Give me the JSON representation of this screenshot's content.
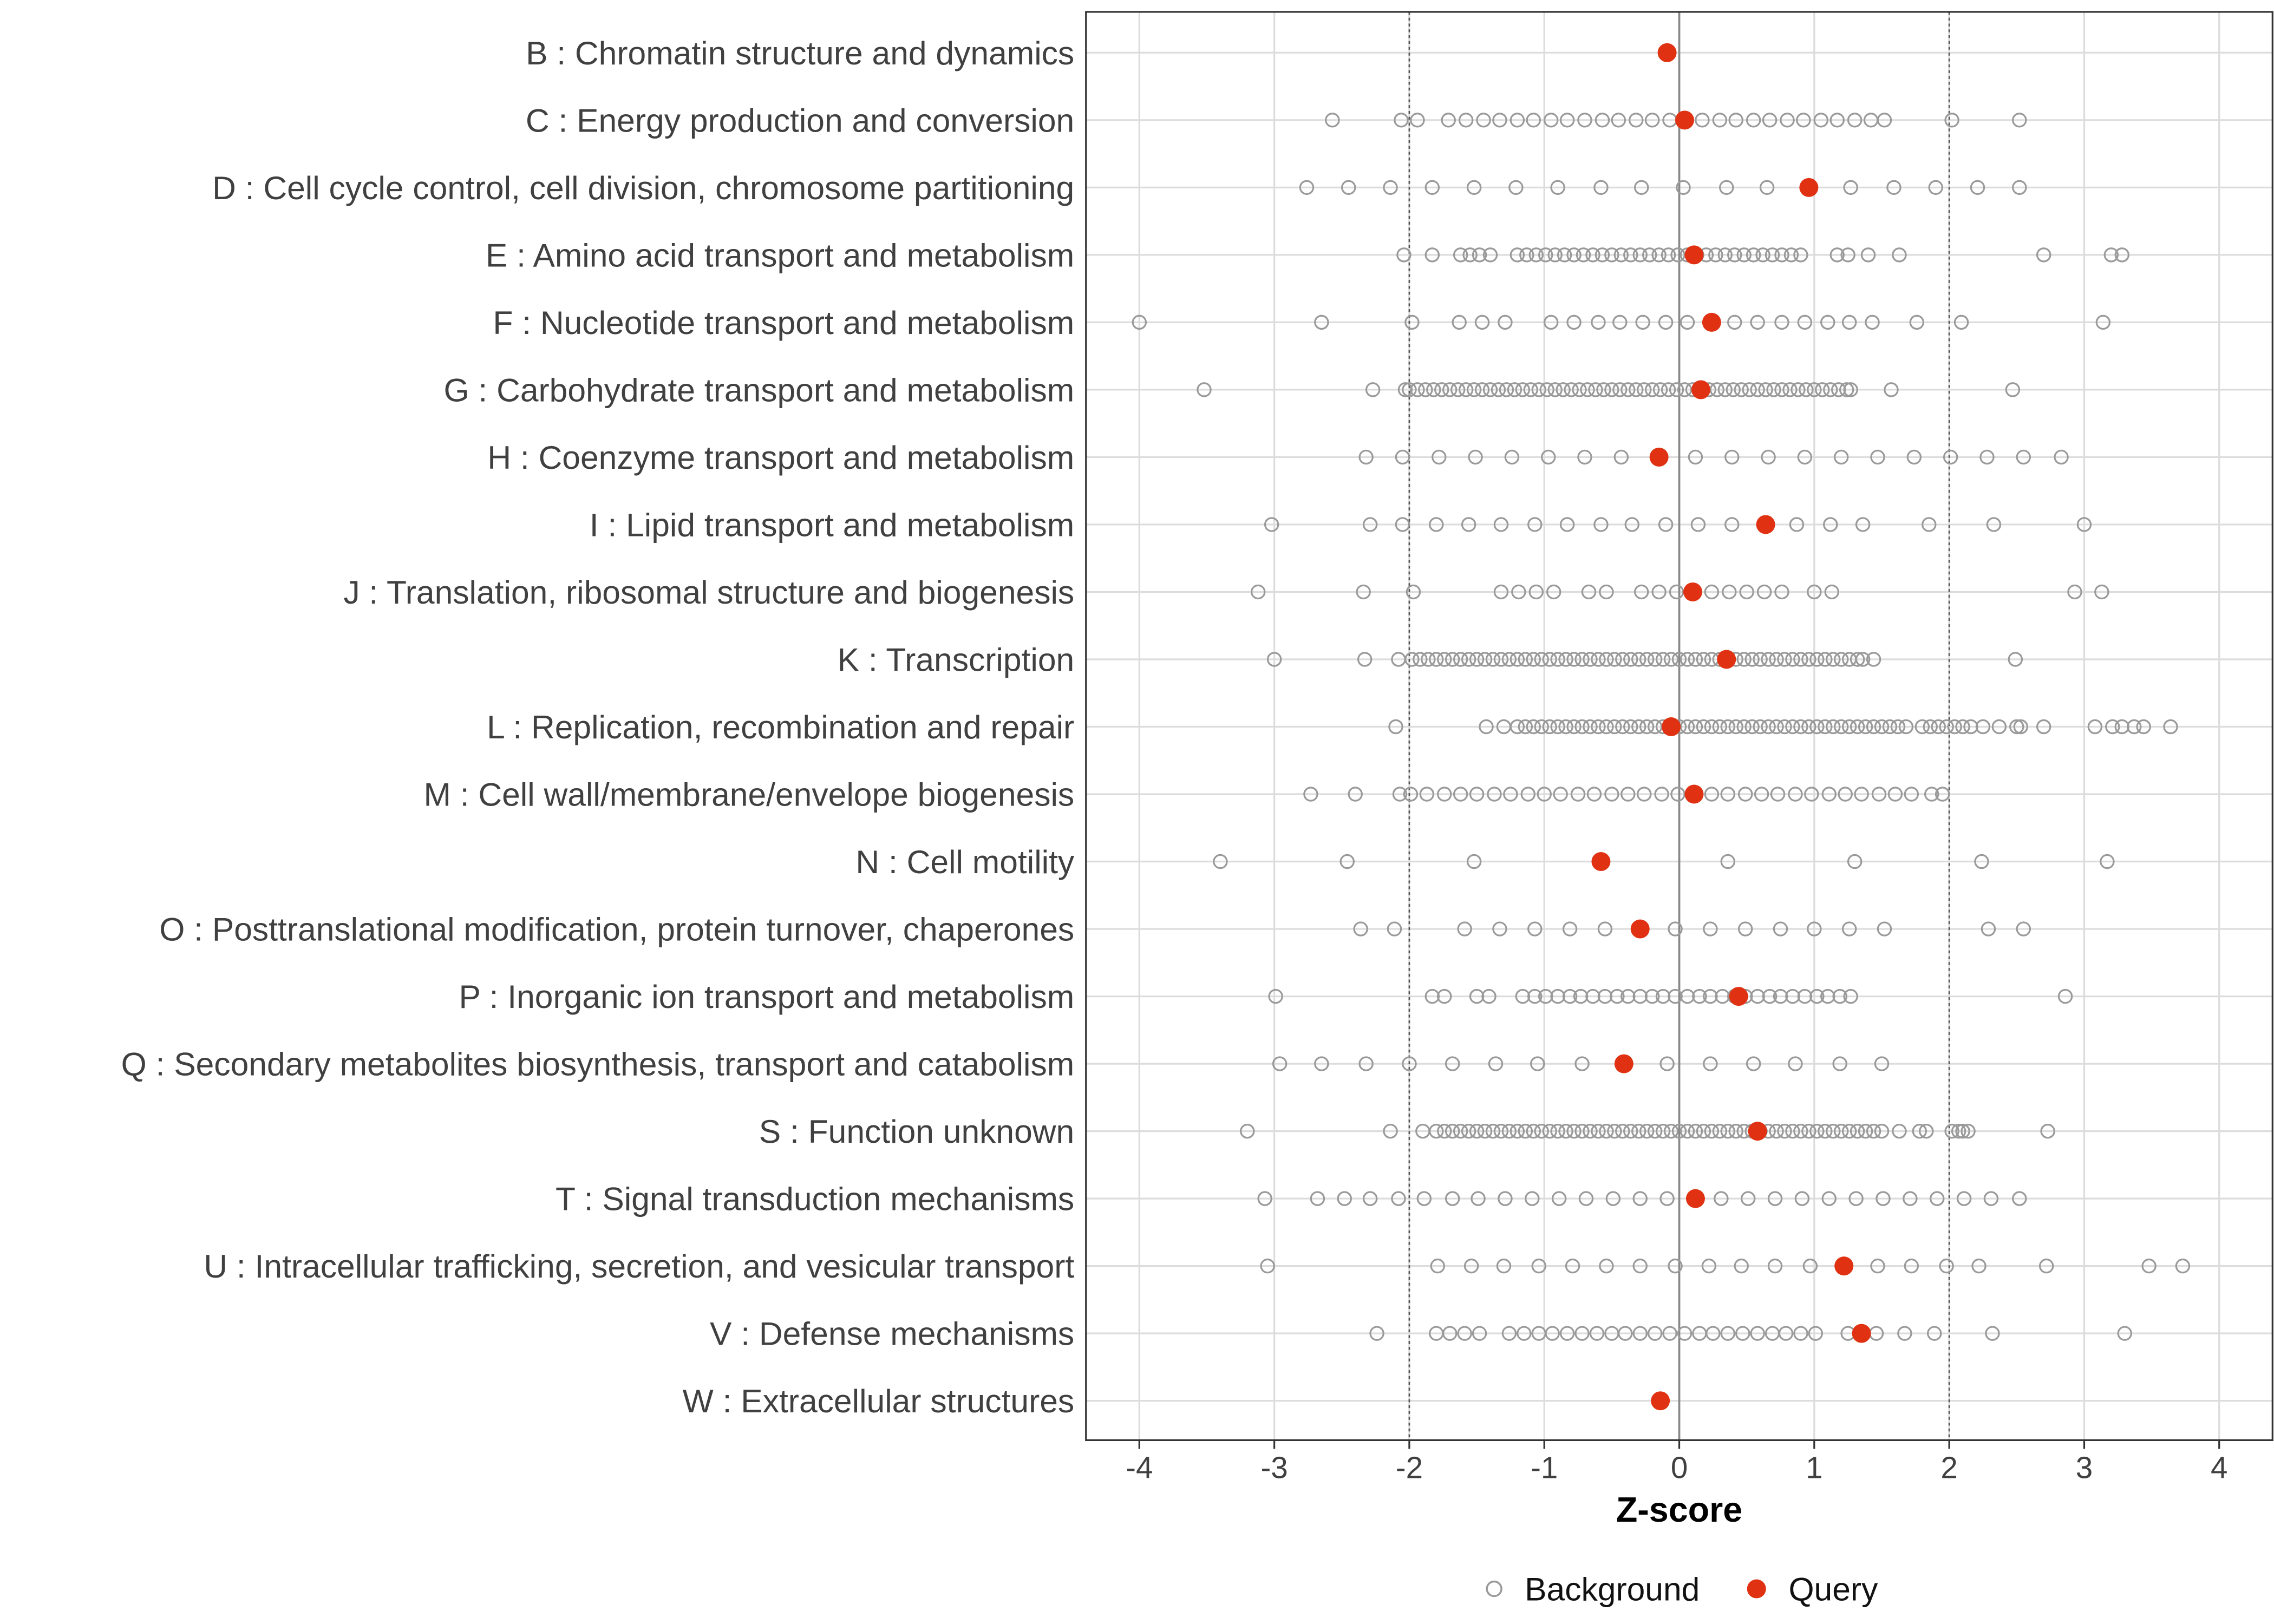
{
  "chart_data": {
    "type": "scatter",
    "title": "",
    "xlabel": "Z-score",
    "ylabel": "",
    "xlim": [
      -4.4,
      4.4
    ],
    "xticks": [
      -4,
      -3,
      -2,
      -1,
      0,
      1,
      2,
      3,
      4
    ],
    "xtick_labels": [
      "-4",
      "-3",
      "-2",
      "-1",
      "0",
      "1",
      "2",
      "3",
      "4"
    ],
    "reference_lines": {
      "dashed": [
        -2,
        2
      ],
      "solid": [
        0
      ]
    },
    "grid": true,
    "legend": {
      "placement": "bottom",
      "entries": [
        "Background",
        "Query"
      ]
    },
    "colors": {
      "background": "#9a9a9a",
      "query": "#e03212"
    },
    "categories": [
      "B : Chromatin structure and dynamics",
      "C : Energy production and conversion",
      "D : Cell cycle control, cell division, chromosome partitioning",
      "E : Amino acid transport and metabolism",
      "F : Nucleotide transport and metabolism",
      "G : Carbohydrate transport and metabolism",
      "H : Coenzyme transport and metabolism",
      "I : Lipid transport and metabolism",
      "J : Translation, ribosomal structure and biogenesis",
      "K : Transcription",
      "L : Replication, recombination and repair",
      "M : Cell wall/membrane/envelope biogenesis",
      "N : Cell motility",
      "O : Posttranslational modification, protein turnover, chaperones",
      "P : Inorganic ion transport and metabolism",
      "Q : Secondary metabolites biosynthesis, transport and catabolism",
      "S : Function unknown",
      "T : Signal transduction mechanisms",
      "U : Intracellular trafficking, secretion, and vesicular transport",
      "V : Defense mechanisms",
      "W : Extracellular structures"
    ],
    "series": [
      {
        "name": "Query",
        "values": [
          -0.09,
          0.04,
          0.96,
          0.11,
          0.24,
          0.16,
          -0.15,
          0.64,
          0.1,
          0.35,
          -0.06,
          0.11,
          -0.58,
          -0.29,
          0.44,
          -0.41,
          0.58,
          0.12,
          1.22,
          1.35,
          -0.14
        ]
      },
      {
        "name": "Background",
        "values": [
          [],
          [
            -2.57,
            -2.06,
            -1.94,
            -1.71,
            -1.58,
            -1.45,
            -1.33,
            -1.2,
            -1.08,
            -0.95,
            -0.83,
            -0.7,
            -0.57,
            -0.45,
            -0.32,
            -0.2,
            -0.07,
            0.05,
            0.17,
            0.3,
            0.42,
            0.55,
            0.67,
            0.8,
            0.92,
            1.05,
            1.17,
            1.3,
            1.42,
            1.52,
            2.02,
            2.52
          ],
          [
            -2.76,
            -2.45,
            -2.14,
            -1.83,
            -1.52,
            -1.21,
            -0.9,
            -0.58,
            -0.28,
            0.03,
            0.35,
            0.65,
            1.27,
            1.59,
            1.9,
            2.21,
            2.52
          ],
          [
            -2.04,
            -1.83,
            -1.62,
            -1.55,
            -1.48,
            -1.4,
            -1.2,
            -1.13,
            -1.06,
            -0.99,
            -0.92,
            -0.85,
            -0.78,
            -0.71,
            -0.64,
            -0.57,
            -0.5,
            -0.43,
            -0.36,
            -0.29,
            -0.22,
            -0.15,
            -0.08,
            -0.01,
            0.06,
            0.13,
            0.2,
            0.27,
            0.34,
            0.41,
            0.48,
            0.55,
            0.62,
            0.69,
            0.76,
            0.83,
            0.9,
            1.17,
            1.25,
            1.4,
            1.63,
            2.7,
            3.2,
            3.28
          ],
          [
            -4.0,
            -2.65,
            -1.98,
            -1.63,
            -1.46,
            -1.29,
            -0.95,
            -0.78,
            -0.6,
            -0.44,
            -0.27,
            -0.1,
            0.06,
            0.41,
            0.58,
            0.76,
            0.93,
            1.1,
            1.26,
            1.43,
            1.76,
            2.09,
            3.14
          ],
          [
            -3.52,
            -2.27,
            -2.03,
            -2.0,
            -1.94,
            -1.88,
            -1.82,
            -1.76,
            -1.7,
            -1.64,
            -1.58,
            -1.52,
            -1.46,
            -1.4,
            -1.34,
            -1.28,
            -1.22,
            -1.16,
            -1.1,
            -1.04,
            -0.98,
            -0.92,
            -0.86,
            -0.8,
            -0.74,
            -0.68,
            -0.62,
            -0.56,
            -0.5,
            -0.44,
            -0.38,
            -0.32,
            -0.26,
            -0.2,
            -0.14,
            -0.08,
            -0.02,
            0.04,
            0.1,
            0.16,
            0.22,
            0.28,
            0.34,
            0.4,
            0.46,
            0.52,
            0.58,
            0.64,
            0.7,
            0.76,
            0.82,
            0.88,
            0.94,
            1.0,
            1.06,
            1.12,
            1.18,
            1.24,
            1.27,
            1.57,
            2.47
          ],
          [
            -2.32,
            -2.05,
            -1.78,
            -1.51,
            -1.24,
            -0.97,
            -0.7,
            -0.43,
            0.12,
            0.39,
            0.66,
            0.93,
            1.2,
            1.47,
            1.74,
            2.01,
            2.28,
            2.55,
            2.83
          ],
          [
            -3.02,
            -2.29,
            -2.05,
            -1.8,
            -1.56,
            -1.32,
            -1.07,
            -0.83,
            -0.58,
            -0.35,
            -0.1,
            0.14,
            0.39,
            0.87,
            1.12,
            1.36,
            1.85,
            2.33,
            3.0
          ],
          [
            -3.12,
            -2.34,
            -1.97,
            -1.32,
            -1.19,
            -1.06,
            -0.93,
            -0.67,
            -0.54,
            -0.28,
            -0.15,
            -0.02,
            0.24,
            0.37,
            0.5,
            0.63,
            0.76,
            1.0,
            1.13,
            2.93,
            3.13
          ],
          [
            -3.0,
            -2.33,
            -2.08,
            -1.98,
            -1.92,
            -1.86,
            -1.8,
            -1.74,
            -1.68,
            -1.62,
            -1.56,
            -1.5,
            -1.44,
            -1.38,
            -1.32,
            -1.26,
            -1.2,
            -1.14,
            -1.08,
            -1.02,
            -0.96,
            -0.9,
            -0.84,
            -0.78,
            -0.72,
            -0.66,
            -0.6,
            -0.54,
            -0.48,
            -0.42,
            -0.36,
            -0.3,
            -0.24,
            -0.18,
            -0.12,
            -0.06,
            0,
            0.06,
            0.12,
            0.18,
            0.24,
            0.3,
            0.36,
            0.42,
            0.48,
            0.54,
            0.6,
            0.66,
            0.72,
            0.78,
            0.84,
            0.9,
            0.96,
            1.02,
            1.08,
            1.14,
            1.2,
            1.26,
            1.32,
            1.36,
            1.44,
            2.49
          ],
          [
            -2.1,
            -1.43,
            -1.3,
            -1.2,
            -1.14,
            -1.08,
            -1.02,
            -0.96,
            -0.9,
            -0.84,
            -0.78,
            -0.72,
            -0.66,
            -0.6,
            -0.54,
            -0.48,
            -0.42,
            -0.36,
            -0.3,
            -0.24,
            -0.18,
            -0.12,
            -0.06,
            0,
            0.06,
            0.12,
            0.18,
            0.24,
            0.3,
            0.36,
            0.42,
            0.48,
            0.54,
            0.6,
            0.66,
            0.72,
            0.78,
            0.84,
            0.9,
            0.96,
            1.02,
            1.08,
            1.14,
            1.2,
            1.26,
            1.32,
            1.38,
            1.44,
            1.5,
            1.56,
            1.62,
            1.68,
            1.8,
            1.86,
            1.92,
            1.98,
            2.04,
            2.1,
            2.16,
            2.25,
            2.37,
            2.5,
            2.53,
            2.7,
            3.08,
            3.21,
            3.28,
            3.37,
            3.44,
            3.64
          ],
          [
            -2.73,
            -2.4,
            -2.07,
            -1.99,
            -1.87,
            -1.74,
            -1.62,
            -1.5,
            -1.37,
            -1.25,
            -1.12,
            -1.0,
            -0.88,
            -0.75,
            -0.63,
            -0.5,
            -0.38,
            -0.26,
            -0.13,
            -0.01,
            0.11,
            0.24,
            0.36,
            0.49,
            0.61,
            0.73,
            0.86,
            0.98,
            1.11,
            1.23,
            1.35,
            1.48,
            1.6,
            1.72,
            1.87,
            1.95
          ],
          [
            -3.4,
            -2.46,
            -1.52,
            0.36,
            1.3,
            2.24,
            3.17
          ],
          [
            -2.36,
            -2.11,
            -1.59,
            -1.33,
            -1.07,
            -0.81,
            -0.55,
            -0.03,
            0.23,
            0.49,
            0.75,
            1.0,
            1.26,
            1.52,
            2.29,
            2.55
          ],
          [
            -2.99,
            -1.83,
            -1.74,
            -1.5,
            -1.41,
            -1.16,
            -1.07,
            -0.99,
            -0.9,
            -0.81,
            -0.73,
            -0.64,
            -0.55,
            -0.46,
            -0.38,
            -0.29,
            -0.2,
            -0.12,
            -0.03,
            0.06,
            0.15,
            0.23,
            0.32,
            0.41,
            0.49,
            0.58,
            0.67,
            0.75,
            0.84,
            0.93,
            1.02,
            1.1,
            1.19,
            1.27,
            2.86
          ],
          [
            -2.96,
            -2.65,
            -2.32,
            -2.0,
            -1.68,
            -1.36,
            -1.05,
            -0.72,
            -0.09,
            0.23,
            0.55,
            0.86,
            1.19,
            1.5
          ],
          [
            -3.2,
            -2.14,
            -1.9,
            -1.8,
            -1.74,
            -1.68,
            -1.62,
            -1.56,
            -1.5,
            -1.44,
            -1.38,
            -1.32,
            -1.26,
            -1.2,
            -1.14,
            -1.08,
            -1.02,
            -0.96,
            -0.9,
            -0.84,
            -0.78,
            -0.72,
            -0.66,
            -0.6,
            -0.54,
            -0.48,
            -0.42,
            -0.36,
            -0.3,
            -0.24,
            -0.18,
            -0.12,
            -0.06,
            0,
            0.06,
            0.12,
            0.18,
            0.24,
            0.3,
            0.36,
            0.42,
            0.48,
            0.54,
            0.6,
            0.66,
            0.72,
            0.78,
            0.84,
            0.9,
            0.96,
            1.02,
            1.08,
            1.14,
            1.2,
            1.26,
            1.32,
            1.38,
            1.44,
            1.5,
            1.63,
            1.78,
            1.83,
            2.02,
            2.07,
            2.1,
            2.14,
            2.73
          ],
          [
            -3.07,
            -2.68,
            -2.48,
            -2.29,
            -2.08,
            -1.89,
            -1.68,
            -1.49,
            -1.29,
            -1.09,
            -0.89,
            -0.69,
            -0.49,
            -0.29,
            -0.09,
            0.31,
            0.51,
            0.71,
            0.91,
            1.11,
            1.31,
            1.51,
            1.71,
            1.91,
            2.11,
            2.31,
            2.52
          ],
          [
            -3.05,
            -1.79,
            -1.54,
            -1.3,
            -1.04,
            -0.79,
            -0.54,
            -0.29,
            -0.03,
            0.22,
            0.46,
            0.71,
            0.97,
            1.47,
            1.72,
            1.98,
            2.22,
            2.72,
            3.48,
            3.73
          ],
          [
            -2.24,
            -1.8,
            -1.7,
            -1.59,
            -1.48,
            -1.26,
            -1.15,
            -1.04,
            -0.94,
            -0.83,
            -0.72,
            -0.61,
            -0.5,
            -0.4,
            -0.29,
            -0.18,
            -0.07,
            0.04,
            0.15,
            0.25,
            0.36,
            0.47,
            0.58,
            0.69,
            0.79,
            0.9,
            1.01,
            1.25,
            1.46,
            1.67,
            1.89,
            2.32,
            3.3
          ],
          []
        ]
      }
    ]
  }
}
